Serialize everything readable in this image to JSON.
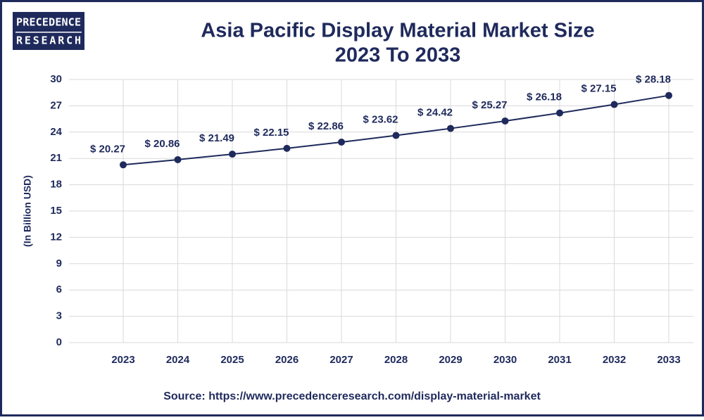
{
  "logo": [
    "PRECEDENCE",
    "RESEARCH"
  ],
  "chart_data": {
    "type": "line",
    "title": "Asia Pacific Display Material Market Size",
    "subtitle": "2023 To 2033",
    "y_label": "(In Billion USD)",
    "source": "Source: https://www.precedenceresearch.com/display-material-market",
    "categories": [
      "2023",
      "2024",
      "2025",
      "2026",
      "2027",
      "2028",
      "2029",
      "2030",
      "2031",
      "2032",
      "2033"
    ],
    "series": [
      {
        "name": "Market Size",
        "color": "#1f2a5c",
        "values": [
          20.27,
          20.86,
          21.49,
          22.15,
          22.86,
          23.62,
          24.42,
          25.27,
          26.18,
          27.15,
          28.18
        ],
        "value_labels": [
          "$ 20.27",
          "$ 20.86",
          "$ 21.49",
          "$ 22.15",
          "$ 22.86",
          "$ 23.62",
          "$ 24.42",
          "$ 25.27",
          "$ 26.18",
          "$ 27.15",
          "$ 28.18"
        ]
      }
    ],
    "ylim": [
      0,
      30
    ],
    "yticks": [
      0,
      3,
      6,
      9,
      12,
      15,
      18,
      21,
      24,
      27,
      30
    ],
    "grid": true
  }
}
